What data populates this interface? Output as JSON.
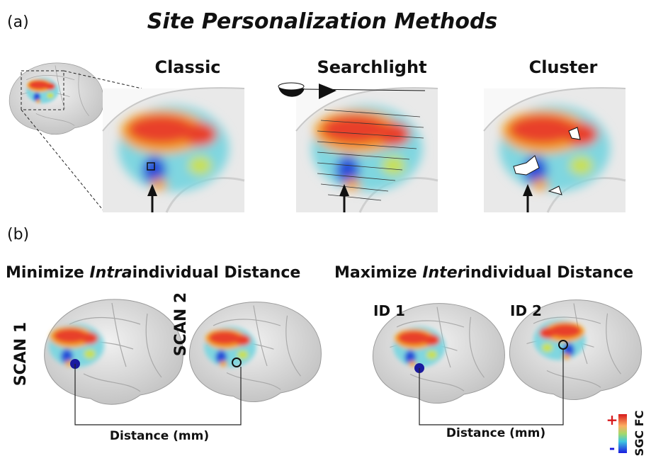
{
  "panel_a": {
    "label": "(a)",
    "title": "Site Personalization Methods",
    "methods": [
      "Classic",
      "Searchlight",
      "Cluster"
    ]
  },
  "panel_b": {
    "label": "(b)",
    "left": {
      "heading": [
        "Minimize ",
        "Intra",
        "individual Distance"
      ],
      "brains": [
        "SCAN 1",
        "SCAN 2"
      ],
      "distance": "Distance (mm)"
    },
    "right": {
      "heading": [
        "Maximize ",
        "Inter",
        "individual Distance"
      ],
      "brains": [
        "ID 1",
        "ID 2"
      ],
      "distance": "Distance (mm)"
    }
  },
  "colorbar": {
    "plus": "+",
    "minus": "-",
    "label": "SGC FC"
  }
}
